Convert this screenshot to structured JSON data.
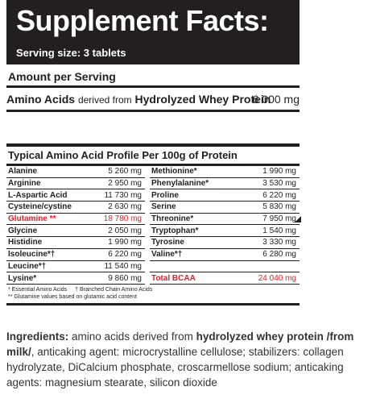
{
  "header": {
    "title": "Supplement Facts:",
    "serving": "Serving size: 3 tablets"
  },
  "amount_per_serving": "Amount per Serving",
  "amino_acids": {
    "label": "Amino Acids",
    "derived": "derived from",
    "source": "Hydrolyzed Whey Protein",
    "value": "6 000 mg"
  },
  "profile": {
    "title": "Typical Amino Acid Profile Per 100g of Protein",
    "rows": [
      {
        "n1": "Alanine",
        "v1": "5 260 mg",
        "n2": "Methionine*",
        "v2": "1 990 mg"
      },
      {
        "n1": "Arginine",
        "v1": "2 950 mg",
        "n2": "Phenylalanine*",
        "v2": "3 530 mg"
      },
      {
        "n1": "L-Aspartic Acid",
        "v1": "11 730 mg",
        "n2": "Proline",
        "v2": "6 220 mg"
      },
      {
        "n1": "Cysteine/cystine",
        "v1": "2 630 mg",
        "n2": "Serine",
        "v2": "5 830 mg"
      },
      {
        "n1": "Glutamine **",
        "v1": "18 780 mg",
        "n2": "Threonine*",
        "v2": "7 950 mg"
      },
      {
        "n1": "Glycine",
        "v1": "2 050 mg",
        "n2": "Tryptophan*",
        "v2": "1 540 mg"
      },
      {
        "n1": "Histidine",
        "v1": "1 990 mg",
        "n2": "Tyrosine",
        "v2": "3 330 mg"
      },
      {
        "n1": "Isoleucine*†",
        "v1": "6 220 mg",
        "n2": "Valine*†",
        "v2": "6 280 mg"
      },
      {
        "n1": "Leucine*†",
        "v1": "11 540 mg",
        "n2": "",
        "v2": ""
      },
      {
        "n1": "Lysine*",
        "v1": "9 860 mg",
        "n2": "Total BCAA",
        "v2": "24 040 mg"
      }
    ],
    "footnote1a": "* Essential Amino Acids",
    "footnote1b": "† Branched Chain Amino Acids",
    "footnote2": "** Glutamine values based on glutamic acid content"
  },
  "ingredients": {
    "label": "Ingredients:",
    "t1": "amino acids derived from",
    "t2": "hydrolyzed whey protein /from milk/",
    "t3": ", anticaking agent: microcrystalline cellulose; stabilizers: collagen hydrolyzate, DiCalcium phosphate, croscarmellose sodium; anticaking agents: magnesium stearate, silicon dioxide"
  },
  "colors": {
    "dark": "#231f20",
    "red": "#e31e24"
  }
}
